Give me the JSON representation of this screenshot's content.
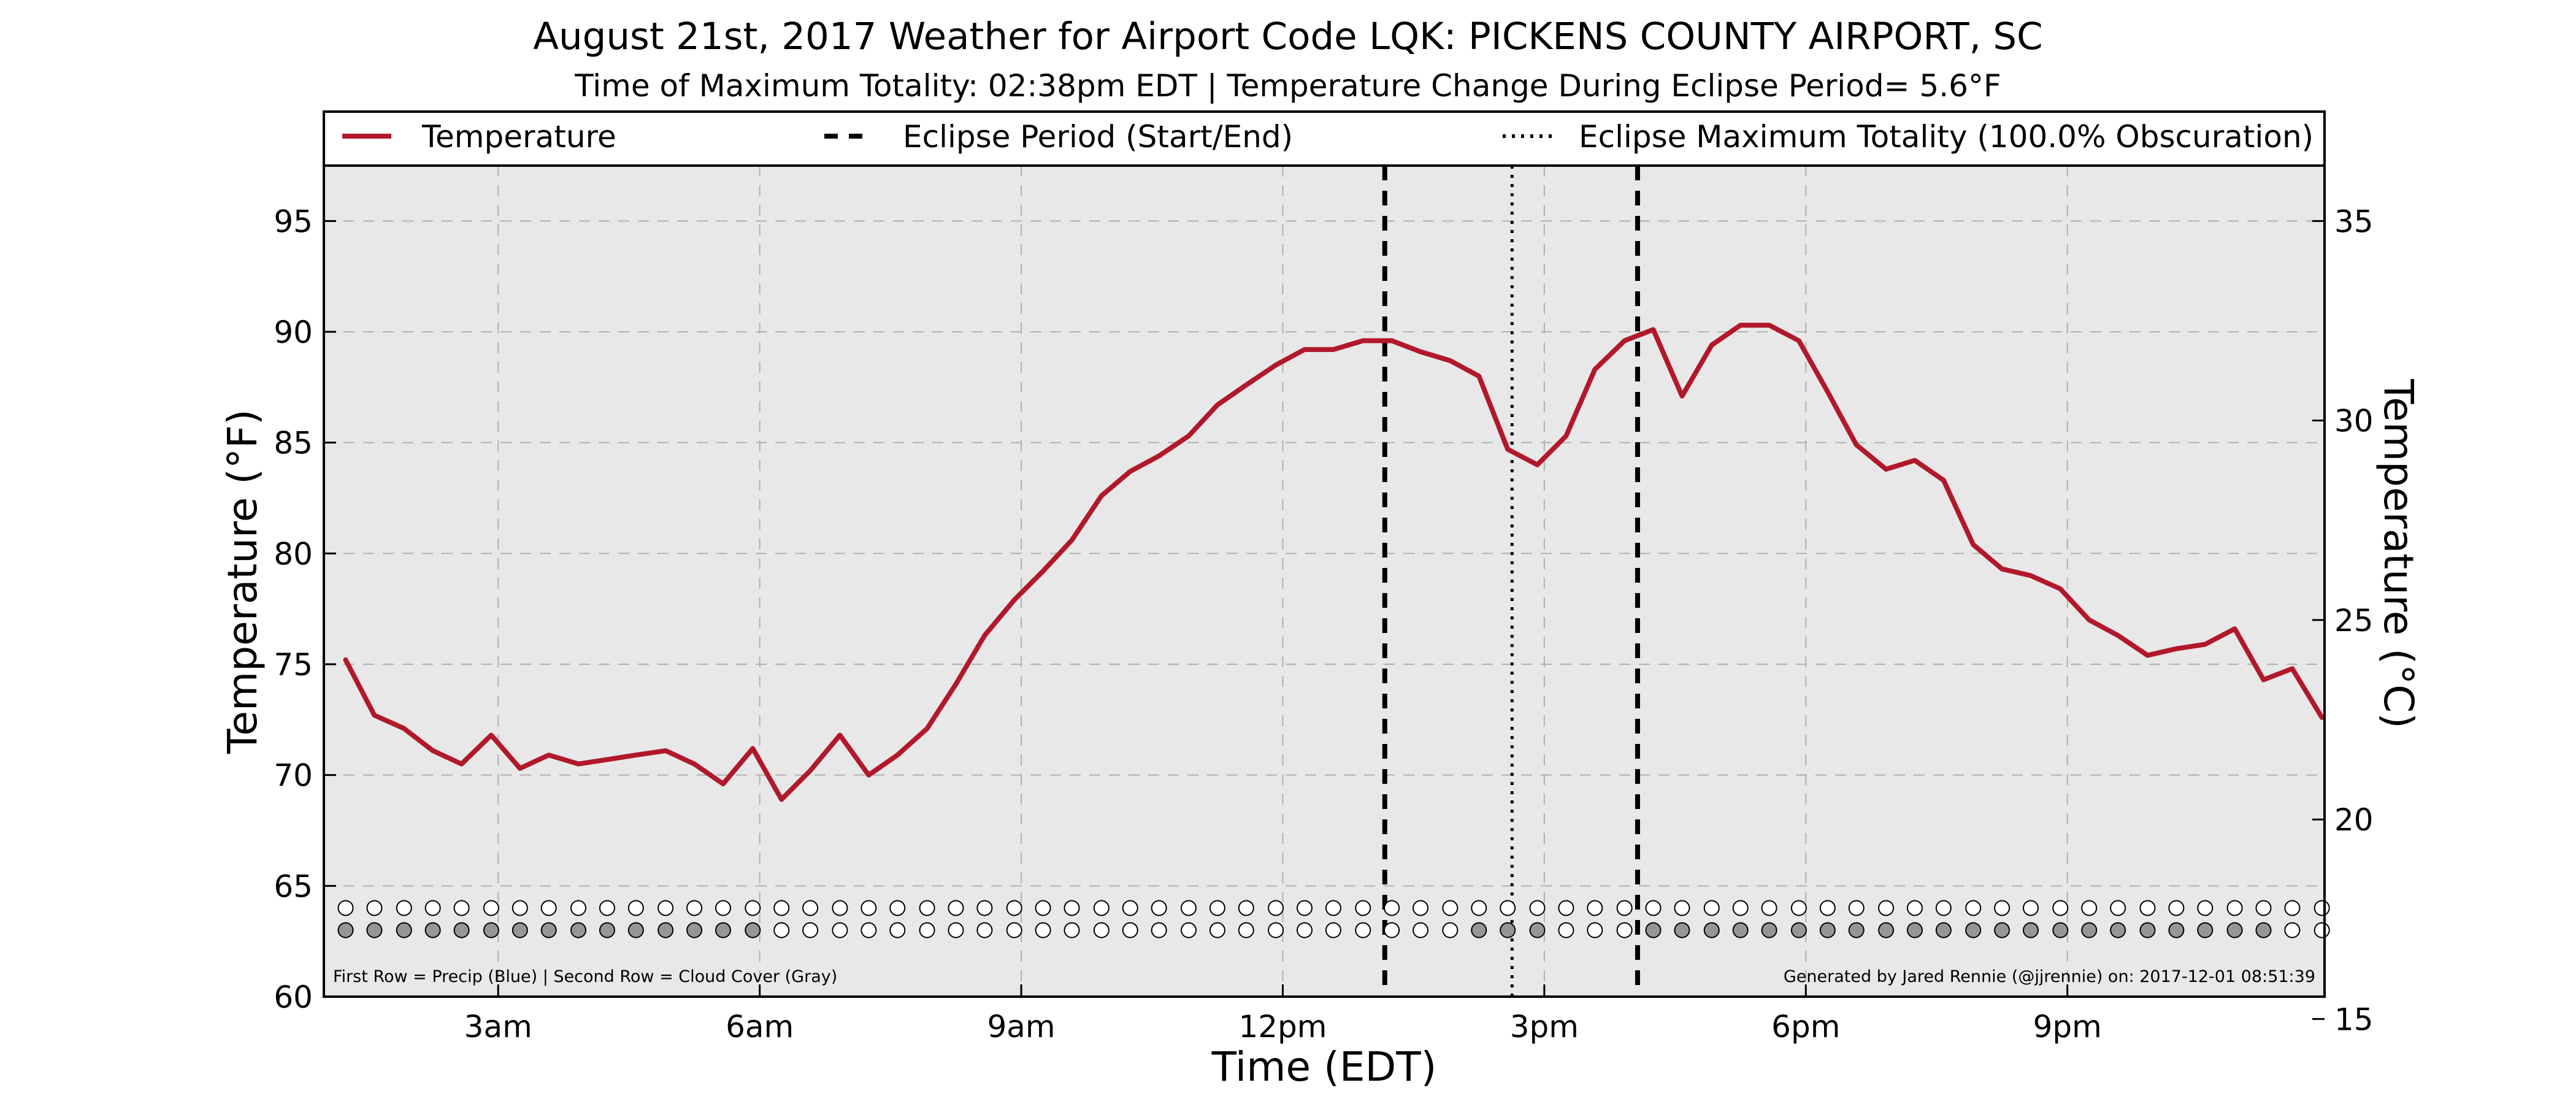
{
  "chart_data": {
    "type": "line",
    "title": "August 21st, 2017 Weather for Airport Code LQK: PICKENS COUNTY AIRPORT, SC",
    "subtitle": "Time of Maximum Totality: 02:38pm EDT | Temperature Change During Eclipse Period= 5.6°F",
    "xlabel": "Time (EDT)",
    "ylabel": "Temperature (°F)",
    "ylabel_right": "Temperature (°C)",
    "xlim": [
      1.0,
      23.95
    ],
    "ylim": [
      60,
      97.5
    ],
    "ylim_right": [
      15.56,
      36.39
    ],
    "x_ticks": [
      {
        "value": 3,
        "label": "3am"
      },
      {
        "value": 6,
        "label": "6am"
      },
      {
        "value": 9,
        "label": "9am"
      },
      {
        "value": 12,
        "label": "12pm"
      },
      {
        "value": 15,
        "label": "3pm"
      },
      {
        "value": 18,
        "label": "6pm"
      },
      {
        "value": 21,
        "label": "9pm"
      }
    ],
    "y_ticks": [
      60,
      65,
      70,
      75,
      80,
      85,
      90,
      95
    ],
    "y_ticks_right": [
      15,
      20,
      25,
      30,
      35
    ],
    "grid": true,
    "legend": {
      "placement": "top",
      "entries": [
        {
          "label": "Temperature",
          "style": "solid"
        },
        {
          "label": "Eclipse Period (Start/End)",
          "style": "dashed"
        },
        {
          "label": "Eclipse Maximum Totality (100.0% Obscuration)",
          "style": "dotted"
        }
      ]
    },
    "series": [
      {
        "name": "Temperature",
        "color": "#b2182b",
        "x": [
          1.25,
          1.58,
          1.92,
          2.25,
          2.58,
          2.92,
          3.25,
          3.58,
          3.92,
          4.25,
          4.58,
          4.92,
          5.25,
          5.58,
          5.92,
          6.25,
          6.58,
          6.92,
          7.25,
          7.58,
          7.92,
          8.25,
          8.58,
          8.92,
          9.25,
          9.58,
          9.92,
          10.25,
          10.58,
          10.92,
          11.25,
          11.58,
          11.92,
          12.25,
          12.58,
          12.92,
          13.25,
          13.58,
          13.92,
          14.25,
          14.58,
          14.92,
          15.25,
          15.58,
          15.92,
          16.25,
          16.58,
          16.92,
          17.25,
          17.58,
          17.92,
          18.25,
          18.58,
          18.92,
          19.25,
          19.58,
          19.92,
          20.25,
          20.58,
          20.92,
          21.25,
          21.58,
          21.92,
          22.25,
          22.58,
          22.92,
          23.25,
          23.58,
          23.92
        ],
        "y": [
          75.2,
          72.7,
          72.1,
          71.1,
          70.5,
          71.8,
          70.3,
          70.9,
          70.5,
          70.7,
          70.9,
          71.1,
          70.5,
          69.6,
          71.2,
          68.9,
          70.2,
          71.8,
          70.0,
          70.9,
          72.1,
          74.1,
          76.3,
          77.9,
          79.2,
          80.6,
          82.6,
          83.7,
          84.4,
          85.3,
          86.7,
          87.6,
          88.5,
          89.2,
          89.2,
          89.6,
          89.6,
          89.1,
          88.7,
          88.0,
          84.7,
          84.0,
          85.3,
          88.3,
          89.6,
          90.1,
          87.1,
          89.4,
          90.3,
          90.3,
          89.6,
          87.3,
          84.9,
          83.8,
          84.2,
          83.3,
          80.4,
          79.3,
          79.0,
          78.4,
          77.0,
          76.3,
          75.4,
          75.7,
          75.9,
          76.6,
          74.3,
          74.8,
          72.6
        ]
      }
    ],
    "eclipse_start": 13.17,
    "eclipse_max": 14.63,
    "eclipse_end": 16.07,
    "marker_rows": {
      "x": [
        1.25,
        1.58,
        1.92,
        2.25,
        2.58,
        2.92,
        3.25,
        3.58,
        3.92,
        4.25,
        4.58,
        4.92,
        5.25,
        5.58,
        5.92,
        6.25,
        6.58,
        6.92,
        7.25,
        7.58,
        7.92,
        8.25,
        8.58,
        8.92,
        9.25,
        9.58,
        9.92,
        10.25,
        10.58,
        10.92,
        11.25,
        11.58,
        11.92,
        12.25,
        12.58,
        12.92,
        13.25,
        13.58,
        13.92,
        14.25,
        14.58,
        14.92,
        15.25,
        15.58,
        15.92,
        16.25,
        16.58,
        16.92,
        17.25,
        17.58,
        17.92,
        18.25,
        18.58,
        18.92,
        19.25,
        19.58,
        19.92,
        20.25,
        20.58,
        20.92,
        21.25,
        21.58,
        21.92,
        22.25,
        22.58,
        22.92,
        23.25,
        23.58,
        23.92
      ],
      "precip_y": 64,
      "cloud_y": 63,
      "precip_filled": [
        0,
        0,
        0,
        0,
        0,
        0,
        0,
        0,
        0,
        0,
        0,
        0,
        0,
        0,
        0,
        0,
        0,
        0,
        0,
        0,
        0,
        0,
        0,
        0,
        0,
        0,
        0,
        0,
        0,
        0,
        0,
        0,
        0,
        0,
        0,
        0,
        0,
        0,
        0,
        0,
        0,
        0,
        0,
        0,
        0,
        0,
        0,
        0,
        0,
        0,
        0,
        0,
        0,
        0,
        0,
        0,
        0,
        0,
        0,
        0,
        0,
        0,
        0,
        0,
        0,
        0,
        0,
        0,
        0
      ],
      "cloud_filled": [
        1,
        1,
        1,
        1,
        1,
        1,
        1,
        1,
        1,
        1,
        1,
        1,
        1,
        1,
        1,
        0,
        0,
        0,
        0,
        0,
        0,
        0,
        0,
        0,
        0,
        0,
        0,
        0,
        0,
        0,
        0,
        0,
        0,
        0,
        0,
        0,
        0,
        0,
        0,
        1,
        1,
        1,
        0,
        0,
        0,
        1,
        1,
        1,
        1,
        1,
        1,
        1,
        1,
        1,
        1,
        1,
        1,
        1,
        1,
        1,
        1,
        1,
        1,
        1,
        1,
        1,
        1,
        0,
        0
      ],
      "precip_color": "#2166ac",
      "cloud_color": "#969696"
    },
    "note_left": "First Row = Precip (Blue) | Second Row = Cloud Cover (Gray)",
    "note_right": "Generated by Jared Rennie (@jjrennie) on: 2017-12-01 08:51:39",
    "colors": {
      "plot_background": "#e8e8e8",
      "grid": "#b0b0b0",
      "eclipse_lines": "#000000"
    }
  }
}
